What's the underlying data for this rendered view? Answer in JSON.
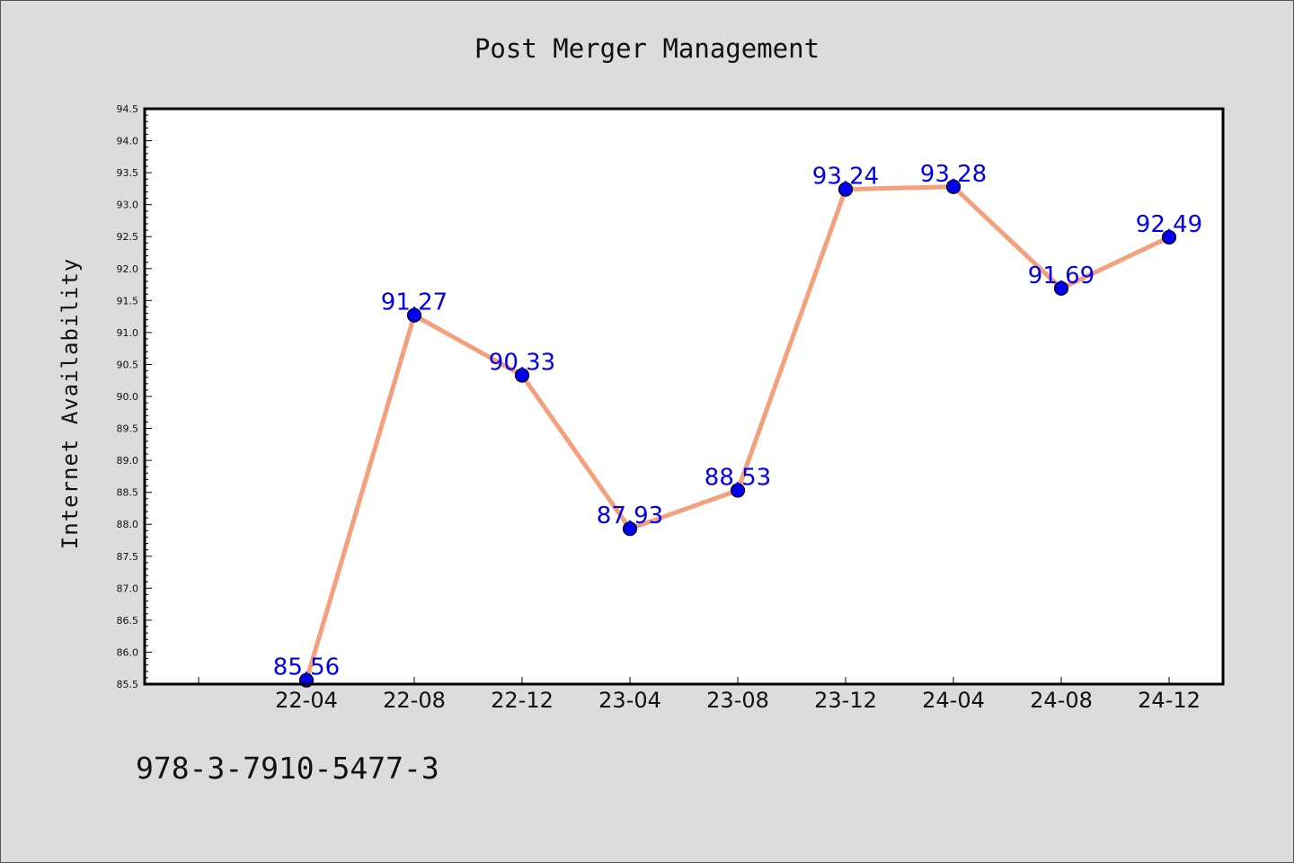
{
  "chart_data": {
    "type": "line",
    "title": "Post Merger Management",
    "xlabel": "",
    "ylabel": "Internet Availability",
    "categories": [
      "22-04",
      "22-08",
      "22-12",
      "23-04",
      "23-08",
      "23-12",
      "24-04",
      "24-08",
      "24-12"
    ],
    "series": [
      {
        "values": [
          85.56,
          91.27,
          90.33,
          87.93,
          88.53,
          93.24,
          93.28,
          91.69,
          92.49
        ]
      }
    ],
    "data_labels": [
      "85.56",
      "91.27",
      "90.33",
      "87.93",
      "88.53",
      "93.24",
      "93.28",
      "91.69",
      "92.49"
    ],
    "yticks": [
      "85.5",
      "86.0",
      "86.5",
      "87.0",
      "87.5",
      "88.0",
      "88.5",
      "89.0",
      "89.5",
      "90.0",
      "90.5",
      "91.0",
      "91.5",
      "92.0",
      "92.5",
      "93.0",
      "93.5",
      "94.0",
      "94.5"
    ],
    "ylim": [
      85.5,
      94.5
    ],
    "grid": false,
    "legend": "none",
    "colors": {
      "line": "#f4a07c",
      "marker": "#0000ee",
      "label": "#0000ee",
      "background": "#dcdcdc",
      "plot_bg": "#ffffff"
    }
  },
  "footer": {
    "text": "978-3-7910-5477-3"
  }
}
